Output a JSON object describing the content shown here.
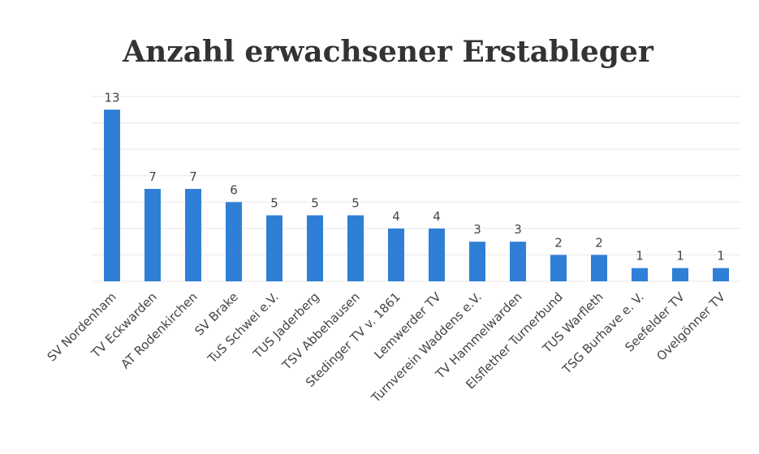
{
  "chart_data": {
    "type": "bar",
    "title": "Anzahl erwachsener Erstableger",
    "categories": [
      "SV Nordenham",
      "TV Eckwarden",
      "AT Rodenkirchen",
      "SV Brake",
      "TuS Schwei e.V.",
      "TUS Jaderberg",
      "TSV Abbehausen",
      "Stedinger TV v. 1861",
      "Lemwerder TV",
      "Turnverein Waddens e.V.",
      "TV Hammelwarden",
      "Elsflether Turnerbund",
      "TUS Warfleth",
      "TSG Burhave e. V.",
      "Seefelder TV",
      "Ovelgönner TV"
    ],
    "values": [
      13,
      7,
      7,
      6,
      5,
      5,
      5,
      4,
      4,
      3,
      3,
      2,
      2,
      1,
      1,
      1
    ],
    "color": "#2f7fd6",
    "ylim": [
      0,
      14
    ],
    "yticks": [
      0,
      2,
      4,
      6,
      8,
      10,
      12,
      14
    ],
    "grid": true
  }
}
